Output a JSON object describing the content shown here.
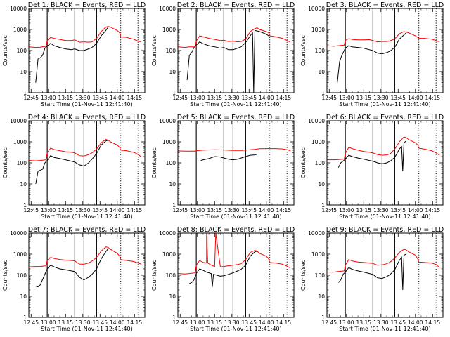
{
  "figure": {
    "panels": [
      {
        "title": "Det 1: BLACK = Events, RED = LLD",
        "xlabel": "Start Time (01-Nov-11 12:41:40)",
        "ylabel": "Counts/sec"
      },
      {
        "title": "Det 2: BLACK = Events, RED = LLD",
        "xlabel": "Start Time (01-Nov-11 12:41:40)",
        "ylabel": "Counts/sec"
      },
      {
        "title": "Det 3: BLACK = Events, RED = LLD",
        "xlabel": "Start Time (01-Nov-11 12:41:40)",
        "ylabel": "Counts/sec"
      },
      {
        "title": "Det 4: BLACK = Events, RED = LLD",
        "xlabel": "Start Time (01-Nov-11 12:41:40)",
        "ylabel": "Counts/sec"
      },
      {
        "title": "Det 5: BLACK = Events, RED = LLD",
        "xlabel": "Start Time (01-Nov-11 12:41:40)",
        "ylabel": "Counts/sec"
      },
      {
        "title": "Det 6: BLACK = Events, RED = LLD",
        "xlabel": "Start Time (01-Nov-11 12:41:40)",
        "ylabel": "Counts/sec"
      },
      {
        "title": "Det 7: BLACK = Events, RED = LLD",
        "xlabel": "Start Time (01-Nov-11 12:41:40)",
        "ylabel": "Counts/sec"
      },
      {
        "title": "Det 8: BLACK = Events, RED = LLD",
        "xlabel": "Start Time (01-Nov-11 12:41:40)",
        "ylabel": "Counts/sec"
      },
      {
        "title": "Det 9: BLACK = Events, RED = LLD",
        "xlabel": "Start Time (01-Nov-11 12:41:40)",
        "ylabel": "Counts/sec"
      }
    ]
  },
  "chart_data": {
    "type": "line",
    "layout": "3x3 grid of time-series panels",
    "x_unit": "UT time (01-Nov-11)",
    "xlim": [
      "12:43",
      "14:24"
    ],
    "xticks": [
      "12:45",
      "13:00",
      "13:15",
      "13:30",
      "13:45",
      "14:00",
      "14:15"
    ],
    "yscale": "log",
    "ylim": [
      1,
      10000
    ],
    "yticks": [
      1,
      10,
      100,
      1000,
      10000
    ],
    "ytick_labels": [
      "1",
      "10",
      "100",
      "1000",
      "10000"
    ],
    "series_colors": {
      "events": "#000000",
      "lld": "#ff0000"
    },
    "solid_markers": [
      "12:59",
      "13:23",
      "13:31",
      "13:42"
    ],
    "dotted_markers": [
      "14:03",
      "14:18"
    ],
    "panels": [
      {
        "lld": {
          "x": [
            "12:43",
            "12:49",
            "12:53",
            "12:58",
            "12:59",
            "13:02",
            "13:05",
            "13:10",
            "13:15",
            "13:20",
            "13:23",
            "13:27",
            "13:31",
            "13:35",
            "13:38",
            "13:42",
            "13:46",
            "13:50",
            "13:52",
            "13:54",
            "14:00",
            "14:02",
            "14:03",
            "14:08",
            "14:14",
            "14:18",
            "14:21"
          ],
          "y": [
            150,
            140,
            145,
            160,
            300,
            420,
            380,
            340,
            300,
            300,
            320,
            250,
            260,
            250,
            260,
            380,
            800,
            1300,
            1400,
            1300,
            900,
            700,
            450,
            420,
            350,
            280,
            260
          ]
        },
        "events": {
          "x": [
            "12:49",
            "12:51",
            "12:53",
            "12:55",
            "12:57",
            "12:59",
            "13:02",
            "13:05",
            "13:10",
            "13:15",
            "13:20",
            "13:23",
            "13:27",
            "13:31",
            "13:35",
            "13:38",
            "13:42",
            "13:46",
            "13:50",
            "13:52"
          ],
          "y": [
            3,
            40,
            45,
            60,
            130,
            160,
            220,
            170,
            140,
            120,
            110,
            120,
            100,
            100,
            120,
            140,
            220,
            500,
            900,
            1300
          ]
        }
      },
      {
        "lld": {
          "x": [
            "12:43",
            "12:49",
            "12:53",
            "12:58",
            "12:59",
            "13:02",
            "13:05",
            "13:10",
            "13:15",
            "13:20",
            "13:23",
            "13:27",
            "13:31",
            "13:35",
            "13:38",
            "13:42",
            "13:46",
            "13:50",
            "13:52",
            "13:54",
            "14:00",
            "14:02",
            "14:03",
            "14:08",
            "14:14",
            "14:18",
            "14:21"
          ],
          "y": [
            150,
            140,
            150,
            150,
            280,
            500,
            450,
            380,
            340,
            300,
            310,
            270,
            280,
            260,
            270,
            350,
            800,
            1100,
            1200,
            1000,
            800,
            700,
            500,
            450,
            380,
            300,
            250
          ]
        },
        "events": {
          "x": [
            "12:51",
            "12:53",
            "12:55",
            "12:57",
            "12:59",
            "13:02",
            "13:05",
            "13:10",
            "13:15",
            "13:20",
            "13:23",
            "13:27",
            "13:31",
            "13:35",
            "13:38",
            "13:42",
            "13:46",
            "13:48",
            "13:49",
            "13:50",
            "13:54",
            "14:00",
            "14:02"
          ],
          "y": [
            4,
            60,
            80,
            140,
            180,
            260,
            210,
            170,
            150,
            130,
            140,
            110,
            110,
            130,
            150,
            240,
            500,
            700,
            1,
            900,
            800,
            600,
            500
          ]
        }
      },
      {
        "lld": {
          "x": [
            "12:43",
            "12:49",
            "12:53",
            "12:58",
            "12:59",
            "13:02",
            "13:05",
            "13:10",
            "13:15",
            "13:20",
            "13:23",
            "13:27",
            "13:31",
            "13:35",
            "13:38",
            "13:42",
            "13:46",
            "13:50",
            "13:52",
            "13:54",
            "14:00",
            "14:02",
            "14:03",
            "14:08",
            "14:14",
            "14:18",
            "14:21"
          ],
          "y": [
            170,
            160,
            170,
            180,
            300,
            370,
            340,
            320,
            320,
            330,
            300,
            260,
            270,
            270,
            290,
            360,
            620,
            800,
            750,
            700,
            500,
            420,
            380,
            380,
            350,
            300,
            260
          ]
        },
        "events": {
          "x": [
            "12:52",
            "12:54",
            "12:56",
            "12:58",
            "12:59",
            "13:02",
            "13:05",
            "13:10",
            "13:15",
            "13:20",
            "13:23",
            "13:27",
            "13:31",
            "13:35",
            "13:38",
            "13:42",
            "13:46",
            "13:50",
            "13:52"
          ],
          "y": [
            3,
            30,
            60,
            100,
            130,
            170,
            150,
            140,
            130,
            110,
            100,
            75,
            70,
            80,
            95,
            140,
            350,
            550,
            700
          ]
        }
      },
      {
        "lld": {
          "x": [
            "12:43",
            "12:49",
            "12:53",
            "12:58",
            "12:59",
            "13:02",
            "13:05",
            "13:10",
            "13:15",
            "13:20",
            "13:23",
            "13:27",
            "13:31",
            "13:35",
            "13:38",
            "13:42",
            "13:46",
            "13:50",
            "13:52",
            "13:54",
            "14:00",
            "14:02",
            "14:03",
            "14:08",
            "14:14",
            "14:18",
            "14:21"
          ],
          "y": [
            130,
            125,
            130,
            140,
            300,
            500,
            430,
            380,
            340,
            320,
            300,
            220,
            210,
            250,
            300,
            450,
            900,
            1300,
            1200,
            1000,
            700,
            550,
            400,
            380,
            320,
            260,
            190
          ]
        },
        "events": {
          "x": [
            "12:49",
            "12:51",
            "12:53",
            "12:55",
            "12:57",
            "12:59",
            "13:02",
            "13:05",
            "13:10",
            "13:15",
            "13:20",
            "13:23",
            "13:27",
            "13:31",
            "13:35",
            "13:38",
            "13:42",
            "13:46",
            "13:50",
            "13:52"
          ],
          "y": [
            10,
            40,
            45,
            50,
            100,
            130,
            220,
            180,
            160,
            140,
            120,
            110,
            80,
            70,
            100,
            150,
            280,
            700,
            1100,
            1200
          ]
        }
      },
      {
        "lld": {
          "x": [
            "12:43",
            "12:50",
            "12:58",
            "12:59",
            "13:05",
            "13:15",
            "13:23",
            "13:31",
            "13:38",
            "13:42",
            "13:46",
            "13:50",
            "13:54",
            "14:00",
            "14:03",
            "14:08",
            "14:14",
            "14:18",
            "14:21"
          ],
          "y": [
            370,
            360,
            360,
            380,
            400,
            420,
            410,
            390,
            390,
            400,
            420,
            440,
            470,
            480,
            480,
            480,
            460,
            420,
            380
          ]
        },
        "events": {
          "x": [
            "13:03",
            "13:05",
            "13:10",
            "13:15",
            "13:20",
            "13:23",
            "13:27",
            "13:31",
            "13:35",
            "13:38",
            "13:42",
            "13:46",
            "13:50",
            "13:52"
          ],
          "y": [
            130,
            140,
            160,
            200,
            190,
            170,
            150,
            140,
            150,
            170,
            200,
            230,
            240,
            260
          ]
        }
      },
      {
        "lld": {
          "x": [
            "12:43",
            "12:49",
            "12:53",
            "12:58",
            "12:59",
            "13:02",
            "13:05",
            "13:10",
            "13:15",
            "13:20",
            "13:23",
            "13:27",
            "13:31",
            "13:35",
            "13:38",
            "13:42",
            "13:46",
            "13:50",
            "13:52",
            "13:54",
            "14:00",
            "14:02",
            "14:03",
            "14:08",
            "14:14",
            "14:18",
            "14:21"
          ],
          "y": [
            140,
            140,
            145,
            150,
            280,
            550,
            480,
            400,
            350,
            320,
            300,
            250,
            230,
            240,
            270,
            450,
            1000,
            1700,
            1600,
            1300,
            900,
            700,
            500,
            450,
            380,
            300,
            230
          ]
        },
        "events": {
          "x": [
            "12:53",
            "12:55",
            "12:57",
            "12:59",
            "13:02",
            "13:05",
            "13:10",
            "13:15",
            "13:20",
            "13:23",
            "13:27",
            "13:31",
            "13:35",
            "13:38",
            "13:42",
            "13:46",
            "13:48",
            "13:49",
            "13:50",
            "13:52"
          ],
          "y": [
            60,
            100,
            120,
            150,
            230,
            200,
            170,
            150,
            130,
            120,
            100,
            90,
            100,
            120,
            180,
            450,
            600,
            40,
            900,
            1100
          ]
        }
      },
      {
        "lld": {
          "x": [
            "12:43",
            "12:49",
            "12:53",
            "12:58",
            "12:59",
            "13:02",
            "13:05",
            "13:10",
            "13:15",
            "13:20",
            "13:23",
            "13:27",
            "13:31",
            "13:35",
            "13:38",
            "13:42",
            "13:46",
            "13:50",
            "13:52",
            "13:54",
            "14:00",
            "14:02",
            "14:03",
            "14:08",
            "14:14",
            "14:18",
            "14:21"
          ],
          "y": [
            250,
            260,
            260,
            280,
            500,
            700,
            620,
            560,
            520,
            500,
            480,
            340,
            330,
            380,
            470,
            700,
            1400,
            2200,
            2100,
            1700,
            1100,
            800,
            550,
            500,
            450,
            380,
            330
          ]
        },
        "events": {
          "x": [
            "12:49",
            "12:51",
            "12:53",
            "12:59",
            "13:02",
            "13:05",
            "13:10",
            "13:15",
            "13:20",
            "13:23",
            "13:27",
            "13:31",
            "13:35",
            "13:38",
            "13:42",
            "13:46",
            "13:50",
            "13:52"
          ],
          "y": [
            30,
            28,
            35,
            200,
            300,
            250,
            200,
            180,
            160,
            150,
            80,
            60,
            80,
            110,
            200,
            600,
            1300,
            1800
          ]
        }
      },
      {
        "lld": {
          "x": [
            "12:43",
            "12:49",
            "12:53",
            "12:58",
            "12:59",
            "13:02",
            "13:05",
            "13:08",
            "13:08",
            "13:09",
            "13:12",
            "13:15",
            "13:16",
            "13:20",
            "13:23",
            "13:27",
            "13:31",
            "13:35",
            "13:38",
            "13:42",
            "13:46",
            "13:50",
            "13:52",
            "13:54",
            "14:00",
            "14:02",
            "14:03",
            "14:08",
            "14:14",
            "14:18",
            "14:21"
          ],
          "y": [
            120,
            115,
            120,
            130,
            300,
            500,
            400,
            380,
            10000,
            380,
            300,
            260,
            10000,
            250,
            260,
            280,
            300,
            320,
            350,
            550,
            1200,
            1500,
            1400,
            1100,
            800,
            600,
            400,
            380,
            330,
            270,
            220
          ]
        },
        "events": {
          "x": [
            "12:53",
            "12:55",
            "12:57",
            "12:59",
            "13:02",
            "13:05",
            "13:08",
            "13:10",
            "13:12",
            "13:13",
            "13:14",
            "13:17",
            "13:20",
            "13:23",
            "13:27",
            "13:31",
            "13:35",
            "13:38",
            "13:42",
            "13:46",
            "13:50",
            "13:52"
          ],
          "y": [
            40,
            45,
            60,
            120,
            200,
            170,
            140,
            130,
            120,
            28,
            110,
            100,
            90,
            95,
            110,
            130,
            160,
            190,
            300,
            800,
            1300,
            1400
          ]
        }
      },
      {
        "lld": {
          "x": [
            "12:43",
            "12:49",
            "12:53",
            "12:58",
            "12:59",
            "13:02",
            "13:05",
            "13:10",
            "13:15",
            "13:20",
            "13:23",
            "13:27",
            "13:31",
            "13:35",
            "13:38",
            "13:42",
            "13:46",
            "13:50",
            "13:52",
            "13:54",
            "14:00",
            "14:02",
            "14:03",
            "14:08",
            "14:14",
            "14:18",
            "14:21"
          ],
          "y": [
            140,
            140,
            150,
            160,
            300,
            550,
            480,
            420,
            400,
            380,
            360,
            300,
            310,
            350,
            420,
            650,
            1200,
            1700,
            1600,
            1300,
            900,
            600,
            420,
            400,
            380,
            320,
            230
          ]
        },
        "events": {
          "x": [
            "12:53",
            "12:55",
            "12:57",
            "12:59",
            "13:02",
            "13:05",
            "13:10",
            "13:15",
            "13:20",
            "13:23",
            "13:27",
            "13:31",
            "13:35",
            "13:38",
            "13:42",
            "13:46",
            "13:48",
            "13:49",
            "13:50",
            "13:52"
          ],
          "y": [
            45,
            60,
            110,
            140,
            230,
            190,
            160,
            140,
            120,
            110,
            75,
            70,
            85,
            110,
            180,
            500,
            700,
            20,
            900,
            1000
          ]
        }
      }
    ]
  }
}
